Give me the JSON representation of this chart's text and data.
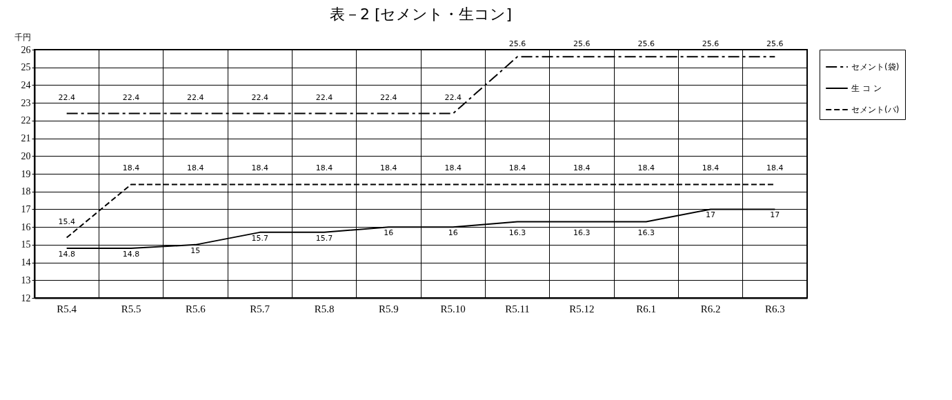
{
  "chart_data": {
    "type": "line",
    "title": "表－2 [セメント・生コン]",
    "ylabel": "千円",
    "categories": [
      "R5.4",
      "R5.5",
      "R5.6",
      "R5.7",
      "R5.8",
      "R5.9",
      "R5.10",
      "R5.11",
      "R5.12",
      "R6.1",
      "R6.2",
      "R6.3"
    ],
    "series": [
      {
        "name": "セメント(袋)",
        "color": "#000000",
        "line_style": "dashed",
        "values": [
          22.4,
          22.4,
          22.4,
          22.4,
          22.4,
          22.4,
          22.4,
          25.6,
          25.6,
          25.6,
          25.6,
          25.6
        ]
      },
      {
        "name": "生 コ ン",
        "color": "#000000",
        "line_style": "solid",
        "values": [
          14.8,
          14.8,
          15,
          15.7,
          15.7,
          16,
          16,
          16.3,
          16.3,
          16.3,
          17,
          17
        ]
      },
      {
        "name": "セメント(バ)",
        "color": "#000000",
        "line_style": "dotted",
        "values": [
          15.4,
          18.4,
          18.4,
          18.4,
          18.4,
          18.4,
          18.4,
          18.4,
          18.4,
          18.4,
          18.4,
          18.4
        ]
      }
    ],
    "ylim": [
      12,
      26
    ],
    "yticks": [
      12,
      13,
      14,
      15,
      16,
      17,
      18,
      19,
      20,
      21,
      22,
      23,
      24,
      25,
      26
    ],
    "grid": true,
    "legend": "right",
    "data_labels": true,
    "marker": "none"
  }
}
